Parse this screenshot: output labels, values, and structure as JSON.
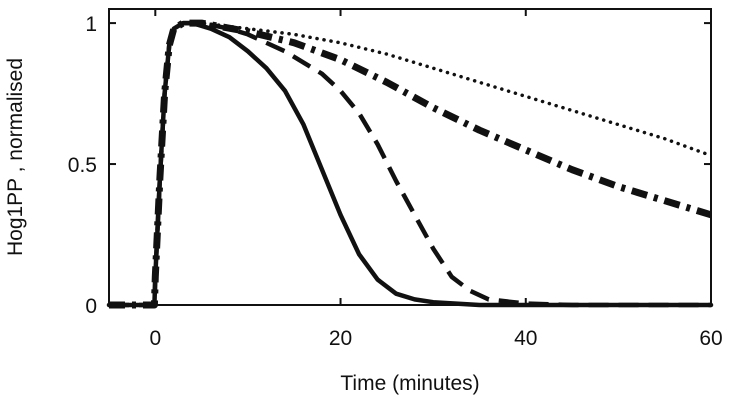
{
  "chart_data": {
    "type": "line",
    "title": "",
    "xlabel": "Time (minutes)",
    "ylabel": "Hog1PP , normalised",
    "xlim": [
      -5,
      60
    ],
    "ylim": [
      0,
      1.05
    ],
    "x_ticks": [
      0,
      20,
      40,
      60
    ],
    "y_ticks": [
      0,
      0.5,
      1
    ],
    "x_tick_labels": [
      "0",
      "20",
      "40",
      "60"
    ],
    "y_tick_labels": [
      "0",
      "0.5",
      "1"
    ],
    "grid": false,
    "legend": "none",
    "series": [
      {
        "line_style": "solid",
        "points": [
          [
            -5,
            0
          ],
          [
            -0.1,
            0
          ],
          [
            0,
            0.1
          ],
          [
            0.5,
            0.45
          ],
          [
            1,
            0.75
          ],
          [
            1.5,
            0.92
          ],
          [
            2,
            0.98
          ],
          [
            3,
            1.0
          ],
          [
            4,
            1.0
          ],
          [
            6,
            0.98
          ],
          [
            8,
            0.95
          ],
          [
            10,
            0.9
          ],
          [
            12,
            0.84
          ],
          [
            14,
            0.76
          ],
          [
            16,
            0.64
          ],
          [
            18,
            0.48
          ],
          [
            20,
            0.32
          ],
          [
            22,
            0.18
          ],
          [
            24,
            0.09
          ],
          [
            26,
            0.04
          ],
          [
            28,
            0.02
          ],
          [
            30,
            0.01
          ],
          [
            35,
            0.0
          ],
          [
            60,
            0.0
          ]
        ]
      },
      {
        "line_style": "dashed",
        "points": [
          [
            -5,
            0
          ],
          [
            -0.1,
            0
          ],
          [
            0,
            0.1
          ],
          [
            0.5,
            0.45
          ],
          [
            1,
            0.75
          ],
          [
            1.5,
            0.92
          ],
          [
            2,
            0.98
          ],
          [
            3,
            1.0
          ],
          [
            5,
            1.0
          ],
          [
            8,
            0.98
          ],
          [
            10,
            0.96
          ],
          [
            14,
            0.9
          ],
          [
            18,
            0.82
          ],
          [
            20,
            0.76
          ],
          [
            22,
            0.68
          ],
          [
            24,
            0.57
          ],
          [
            26,
            0.44
          ],
          [
            28,
            0.32
          ],
          [
            30,
            0.2
          ],
          [
            32,
            0.1
          ],
          [
            34,
            0.05
          ],
          [
            36,
            0.02
          ],
          [
            40,
            0.005
          ],
          [
            45,
            0.0
          ],
          [
            60,
            0.0
          ]
        ]
      },
      {
        "line_style": "dash-dot",
        "points": [
          [
            -5,
            0
          ],
          [
            -0.1,
            0
          ],
          [
            0,
            0.1
          ],
          [
            0.5,
            0.45
          ],
          [
            1,
            0.75
          ],
          [
            1.5,
            0.92
          ],
          [
            2,
            0.98
          ],
          [
            3,
            1.0
          ],
          [
            5,
            1.0
          ],
          [
            10,
            0.97
          ],
          [
            15,
            0.93
          ],
          [
            20,
            0.87
          ],
          [
            25,
            0.79
          ],
          [
            30,
            0.7
          ],
          [
            35,
            0.62
          ],
          [
            40,
            0.55
          ],
          [
            45,
            0.48
          ],
          [
            50,
            0.42
          ],
          [
            55,
            0.37
          ],
          [
            60,
            0.32
          ]
        ]
      },
      {
        "line_style": "dotted",
        "points": [
          [
            -5,
            0
          ],
          [
            -0.1,
            0
          ],
          [
            0,
            0.1
          ],
          [
            0.5,
            0.45
          ],
          [
            1,
            0.75
          ],
          [
            1.5,
            0.92
          ],
          [
            2,
            0.98
          ],
          [
            3,
            1.0
          ],
          [
            5,
            1.0
          ],
          [
            10,
            0.98
          ],
          [
            15,
            0.96
          ],
          [
            20,
            0.93
          ],
          [
            25,
            0.89
          ],
          [
            30,
            0.84
          ],
          [
            35,
            0.79
          ],
          [
            40,
            0.74
          ],
          [
            45,
            0.69
          ],
          [
            50,
            0.64
          ],
          [
            55,
            0.59
          ],
          [
            60,
            0.53
          ]
        ]
      }
    ],
    "colors": {
      "lines": "#111111",
      "axes": "#111111",
      "background": "#ffffff"
    }
  }
}
